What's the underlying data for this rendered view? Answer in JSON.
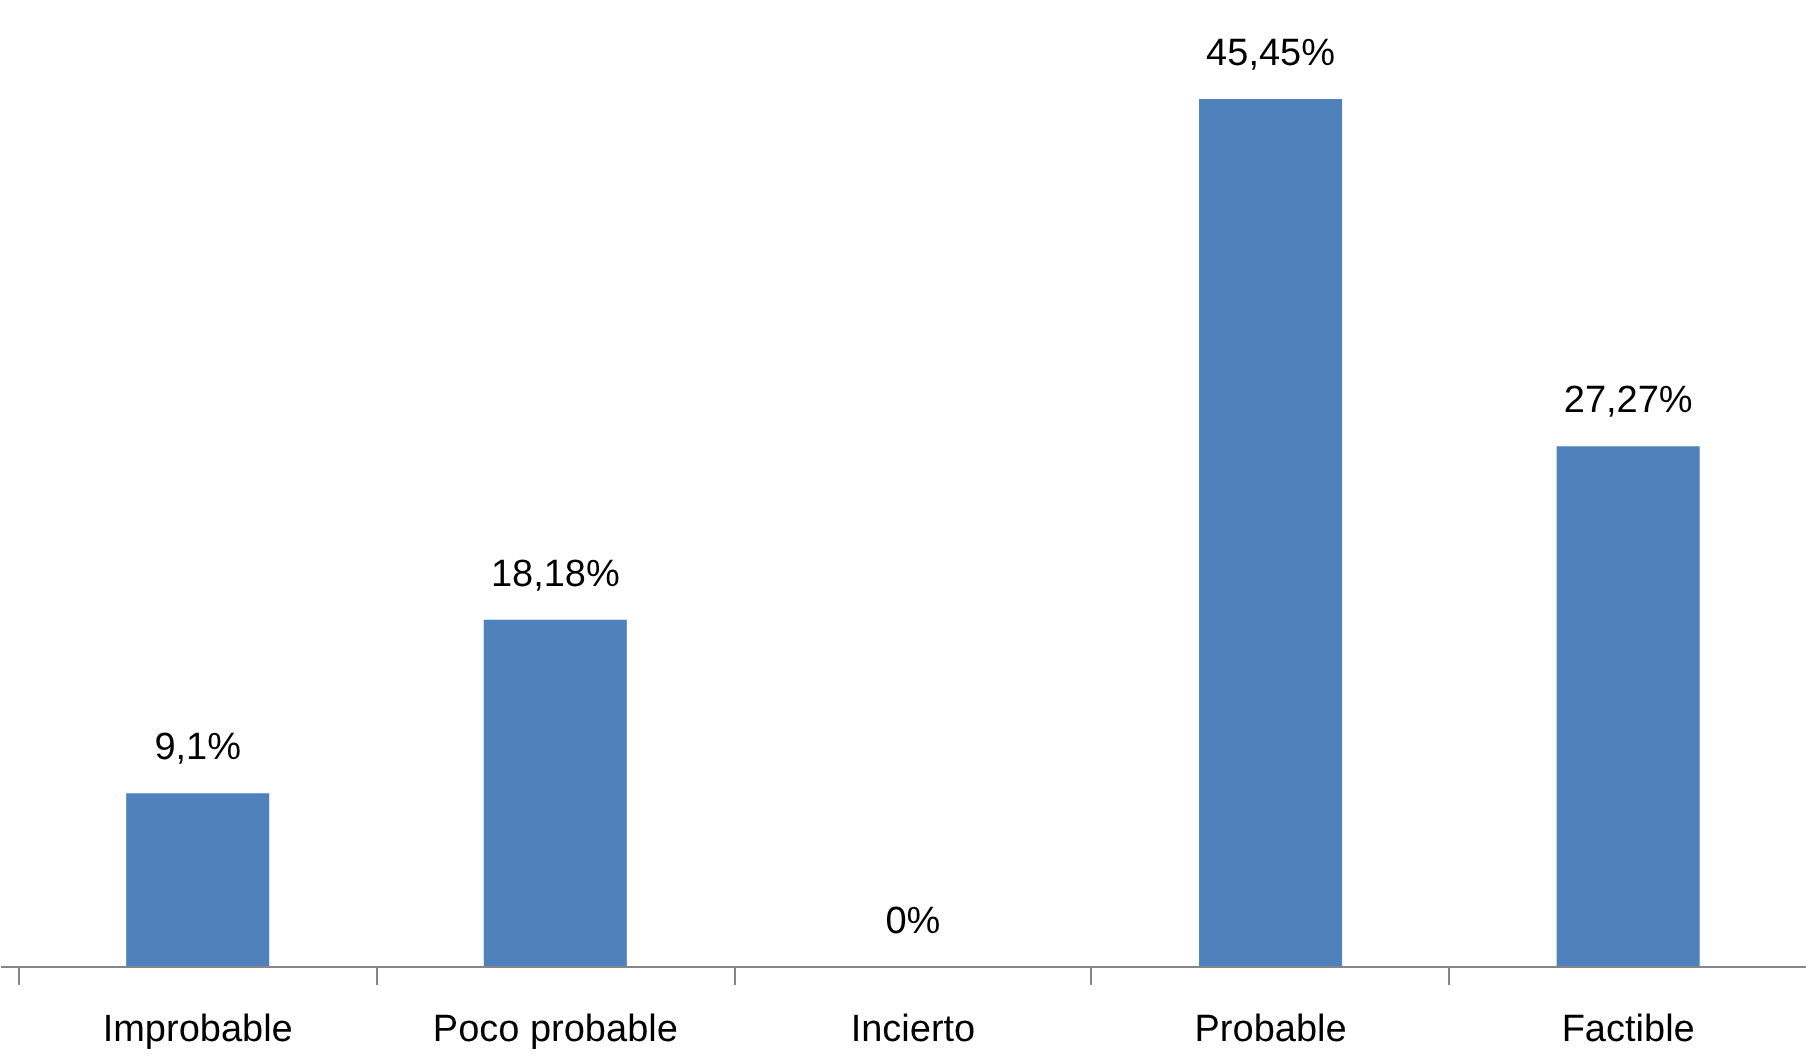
{
  "chart_data": {
    "type": "bar",
    "categories": [
      "Improbable",
      "Poco probable",
      "Incierto",
      "Probable",
      "Factible"
    ],
    "values": [
      9.1,
      18.18,
      0,
      45.45,
      27.27
    ],
    "color": "#4f81bd",
    "value_labels": [
      "9,1%",
      "18,18%",
      "0%",
      "45,45%",
      "27,27%"
    ]
  }
}
